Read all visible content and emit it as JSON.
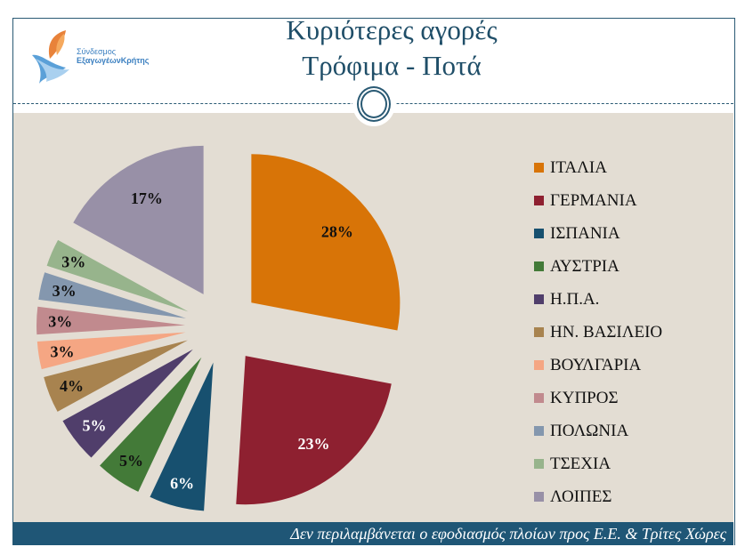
{
  "header": {
    "title_line1": "Κυριότερες αγορές",
    "title_line2": "Τρόφιμα - Ποτά",
    "logo_text_line1": "Σύνδεσμος",
    "logo_text_line2": "ΕξαγωγέωνΚρήτης"
  },
  "footer": {
    "note": "Δεν περιλαμβάνεται ο εφοδιασμός πλοίων προς Ε.Ε. & Τρίτες Χώρες"
  },
  "chart_data": {
    "type": "pie",
    "exploded": true,
    "start": "12 o'clock clockwise",
    "legend_position": "right",
    "categories": [
      "ΙΤΑΛΙΑ",
      "ΓΕΡΜΑΝΙΑ",
      "ΙΣΠΑΝΙΑ",
      "ΑΥΣΤΡΙΑ",
      "Η.Π.Α.",
      "ΗΝ. ΒΑΣΙΛΕΙΟ",
      "ΒΟΥΛΓΑΡΙΑ",
      "ΚΥΠΡΟΣ",
      "ΠΟΛΩΝΙΑ",
      "ΤΣΕΧΙΑ",
      "ΛΟΙΠΕΣ"
    ],
    "values": [
      28,
      23,
      6,
      5,
      5,
      4,
      3,
      3,
      3,
      3,
      17
    ],
    "labels": [
      "28%",
      "23%",
      "6%",
      "5%",
      "5%",
      "4%",
      "3%",
      "3%",
      "3%",
      "3%",
      "17%"
    ],
    "colors": [
      "#d87407",
      "#8e2030",
      "#17506f",
      "#437a38",
      "#503e6b",
      "#a8834f",
      "#f5a683",
      "#c18a8e",
      "#8497ae",
      "#97b48c",
      "#9890a7"
    ],
    "label_colors": [
      "#111111",
      "#ffffff",
      "#ffffff",
      "#111111",
      "#ffffff",
      "#111111",
      "#111111",
      "#111111",
      "#111111",
      "#111111",
      "#111111"
    ]
  }
}
